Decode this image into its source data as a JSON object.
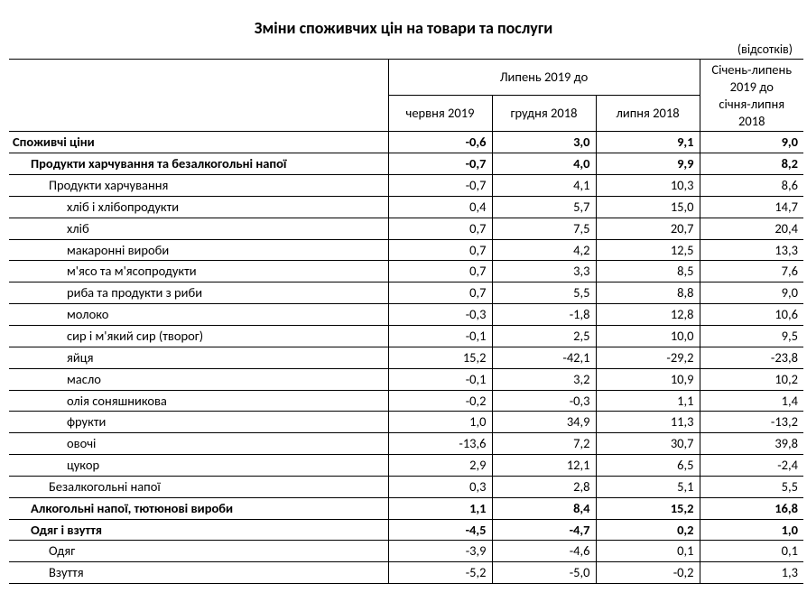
{
  "title": "Зміни споживчих цін на товари та послуги",
  "unit_label": "(відсотків)",
  "headers": {
    "group": "Липень 2019 до",
    "col1": "червня 2019",
    "col2": "грудня 2018",
    "col3": "липня 2018",
    "col4_l1": "Січень-липень",
    "col4_l2": "2019 до",
    "col4_l3": "січня-липня",
    "col4_l4": "2018"
  },
  "rows": [
    {
      "label": "Споживчі ціни",
      "indent": 0,
      "bold": true,
      "v": [
        "-0,6",
        "3,0",
        "9,1",
        "9,0"
      ]
    },
    {
      "label": "Продукти харчування та безалкогольні напої",
      "indent": 1,
      "bold": true,
      "v": [
        "-0,7",
        "4,0",
        "9,9",
        "8,2"
      ]
    },
    {
      "label": "Продукти харчування",
      "indent": 2,
      "bold": false,
      "v": [
        "-0,7",
        "4,1",
        "10,3",
        "8,6"
      ]
    },
    {
      "label": "хліб і хлібопродукти",
      "indent": 3,
      "bold": false,
      "v": [
        "0,4",
        "5,7",
        "15,0",
        "14,7"
      ]
    },
    {
      "label": "хліб",
      "indent": 3,
      "bold": false,
      "v": [
        "0,7",
        "7,5",
        "20,7",
        "20,4"
      ]
    },
    {
      "label": "макаронні вироби",
      "indent": 3,
      "bold": false,
      "v": [
        "0,7",
        "4,2",
        "12,5",
        "13,3"
      ]
    },
    {
      "label": "м'ясо та м'ясопродукти",
      "indent": 3,
      "bold": false,
      "v": [
        "0,7",
        "3,3",
        "8,5",
        "7,6"
      ]
    },
    {
      "label": "риба та продукти з риби",
      "indent": 3,
      "bold": false,
      "v": [
        "0,7",
        "5,5",
        "8,8",
        "9,0"
      ]
    },
    {
      "label": "молоко",
      "indent": 3,
      "bold": false,
      "v": [
        "-0,3",
        "-1,8",
        "12,8",
        "10,6"
      ]
    },
    {
      "label": "сир і м'який сир (творог)",
      "indent": 3,
      "bold": false,
      "v": [
        "-0,1",
        "2,5",
        "10,0",
        "9,5"
      ]
    },
    {
      "label": "яйця",
      "indent": 3,
      "bold": false,
      "v": [
        "15,2",
        "-42,1",
        "-29,2",
        "-23,8"
      ]
    },
    {
      "label": "масло",
      "indent": 3,
      "bold": false,
      "v": [
        "-0,1",
        "3,2",
        "10,9",
        "10,2"
      ]
    },
    {
      "label": "олія соняшникова",
      "indent": 3,
      "bold": false,
      "v": [
        "-0,2",
        "-0,3",
        "1,1",
        "1,4"
      ]
    },
    {
      "label": "фрукти",
      "indent": 3,
      "bold": false,
      "v": [
        "1,0",
        "34,9",
        "11,3",
        "-13,2"
      ]
    },
    {
      "label": "овочі",
      "indent": 3,
      "bold": false,
      "v": [
        "-13,6",
        "7,2",
        "30,7",
        "39,8"
      ]
    },
    {
      "label": "цукор",
      "indent": 3,
      "bold": false,
      "v": [
        "2,9",
        "12,1",
        "6,5",
        "-2,4"
      ]
    },
    {
      "label": "Безалкогольні напої",
      "indent": 2,
      "bold": false,
      "v": [
        "0,3",
        "2,8",
        "5,1",
        "5,5"
      ]
    },
    {
      "label": "Алкогольні напої, тютюнові вироби",
      "indent": 1,
      "bold": true,
      "v": [
        "1,1",
        "8,4",
        "15,2",
        "16,8"
      ]
    },
    {
      "label": "Одяг і взуття",
      "indent": 1,
      "bold": true,
      "v": [
        "-4,5",
        "-4,7",
        "0,2",
        "1,0"
      ]
    },
    {
      "label": "Одяг",
      "indent": 2,
      "bold": false,
      "v": [
        "-3,9",
        "-4,6",
        "0,1",
        "0,1"
      ]
    },
    {
      "label": "Взуття",
      "indent": 2,
      "bold": false,
      "v": [
        "-5,2",
        "-5,0",
        "-0,2",
        "1,3"
      ]
    }
  ]
}
